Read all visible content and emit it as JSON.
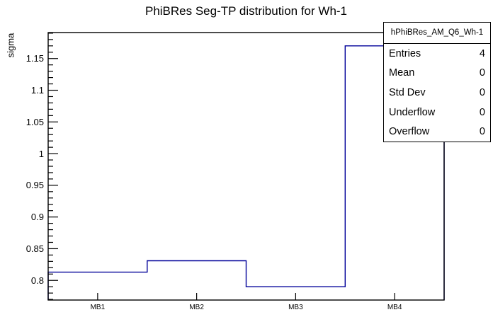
{
  "title": "PhiBRes Seg-TP distribution for Wh-1",
  "chart_data": {
    "type": "line",
    "subtype": "step-histogram",
    "title": "PhiBRes Seg-TP distribution for Wh-1",
    "categories": [
      "MB1",
      "MB2",
      "MB3",
      "MB4"
    ],
    "values": [
      0.813,
      0.831,
      0.79,
      1.17
    ],
    "xlabel": "",
    "ylabel": "sigma",
    "ylim": [
      0.769,
      1.191
    ],
    "y_major_ticks": [
      0.8,
      0.85,
      0.9,
      0.95,
      1.0,
      1.05,
      1.1,
      1.15
    ],
    "y_tick_labels": [
      "0.8",
      "0.85",
      "0.9",
      "0.95",
      "1",
      "1.05",
      "1.1",
      "1.15"
    ],
    "y_minor_step": 0.01,
    "grid": false,
    "legend_position": "none"
  },
  "stats": {
    "title": "hPhiBRes_AM_Q6_Wh-1",
    "rows": [
      {
        "label": "Entries",
        "value": "4"
      },
      {
        "label": "Mean",
        "value": "0"
      },
      {
        "label": "Std Dev",
        "value": "0"
      },
      {
        "label": "Underflow",
        "value": "0"
      },
      {
        "label": "Overflow",
        "value": "0"
      }
    ]
  },
  "colors": {
    "histogram_line": "#000099",
    "frame": "#000000",
    "background": "#ffffff",
    "text": "#000000"
  }
}
